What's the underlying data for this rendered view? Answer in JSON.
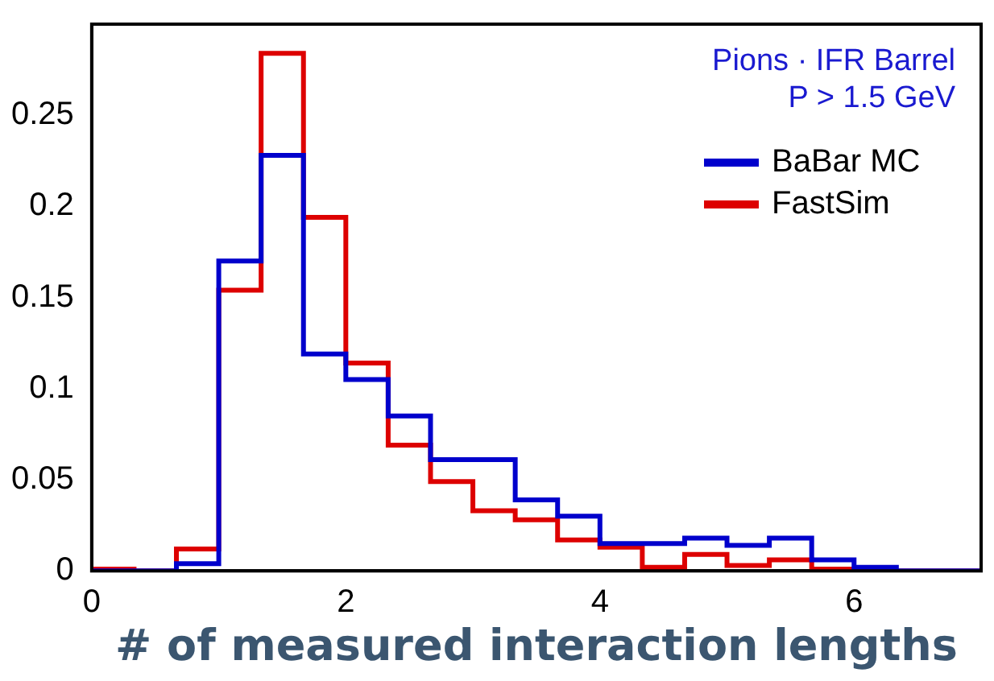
{
  "chart_data": {
    "type": "histogram",
    "xlabel": "# of measured interaction lengths",
    "bins": [
      0,
      0.3333,
      0.6667,
      1,
      1.3333,
      1.6667,
      2,
      2.3333,
      2.6667,
      3,
      3.3333,
      3.6667,
      4,
      4.3333,
      4.6667,
      5,
      5.3333,
      5.6667,
      6,
      6.3333,
      6.6667,
      7
    ],
    "series": [
      {
        "name": "BaBar MC",
        "color": "#0000cc",
        "values": [
          0,
          0,
          0.004,
          0.17,
          0.228,
          0.119,
          0.105,
          0.085,
          0.061,
          0.061,
          0.039,
          0.03,
          0.015,
          0.015,
          0.018,
          0.014,
          0.018,
          0.006,
          0.002,
          0,
          0
        ]
      },
      {
        "name": "FastSim",
        "color": "#dd0000",
        "values": [
          0.001,
          0,
          0.012,
          0.154,
          0.284,
          0.194,
          0.114,
          0.069,
          0.049,
          0.033,
          0.028,
          0.017,
          0.013,
          0.002,
          0.009,
          0.003,
          0.006,
          0.001,
          0,
          0,
          0
        ]
      }
    ],
    "xlim": [
      0,
      7
    ],
    "xticks": [
      0,
      2,
      4,
      6
    ],
    "ylim": [
      0,
      0.3
    ],
    "yticks": [
      0,
      0.05,
      0.1,
      0.15,
      0.2,
      0.25
    ],
    "annotations": [
      "Pions · IFR Barrel",
      "P > 1.5 GeV"
    ],
    "legend": "top right",
    "grid": false
  }
}
